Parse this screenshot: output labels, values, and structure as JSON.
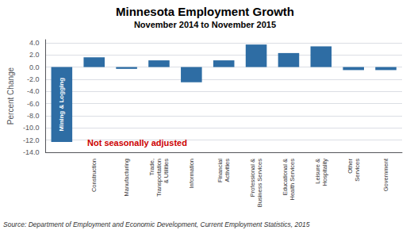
{
  "chart_data": {
    "type": "bar",
    "title": "Minnesota Employment Growth",
    "subtitle": "November 2014 to November 2015",
    "categories": [
      null,
      "Construction",
      "Manufacturing",
      "Trade,\nTransportation\n& Utilities",
      "Information",
      "Financial\nActivities",
      "Professional &\nBusiness Services",
      "Educational &\nHealth Services",
      "Leisure &\nHospitality",
      "Other\nServices",
      "Government"
    ],
    "values": [
      -12.3,
      1.6,
      -0.3,
      1.1,
      -2.5,
      1.1,
      3.7,
      2.3,
      3.4,
      -0.5,
      -0.5
    ],
    "color": "#2e6da4",
    "ylabel": "Percent Change",
    "ylim": [
      -14.0,
      4.5
    ],
    "yticks": [
      {
        "value": 4.0,
        "label": "4.0"
      },
      {
        "value": 2.0,
        "label": "2.0"
      },
      {
        "value": 0.0,
        "label": "0.0"
      },
      {
        "value": -2.0,
        "label": "-2.0"
      },
      {
        "value": -4.0,
        "label": "-4.0"
      },
      {
        "value": -6.0,
        "label": "-6.0"
      },
      {
        "value": -8.0,
        "label": "-8.0"
      },
      {
        "value": -10.0,
        "label": "-10.0"
      },
      {
        "value": -12.0,
        "label": "-12.0"
      },
      {
        "value": -14.0,
        "label": "-14.0"
      }
    ],
    "grid": true,
    "annotations": [
      {
        "text": "Mining & Logging"
      },
      {
        "text": "Not seasonally adjusted",
        "color": "#cc0000"
      },
      {
        "text": "Source: Department of Employment and Economic Development, Current Employment Statistics, 2015"
      }
    ]
  }
}
